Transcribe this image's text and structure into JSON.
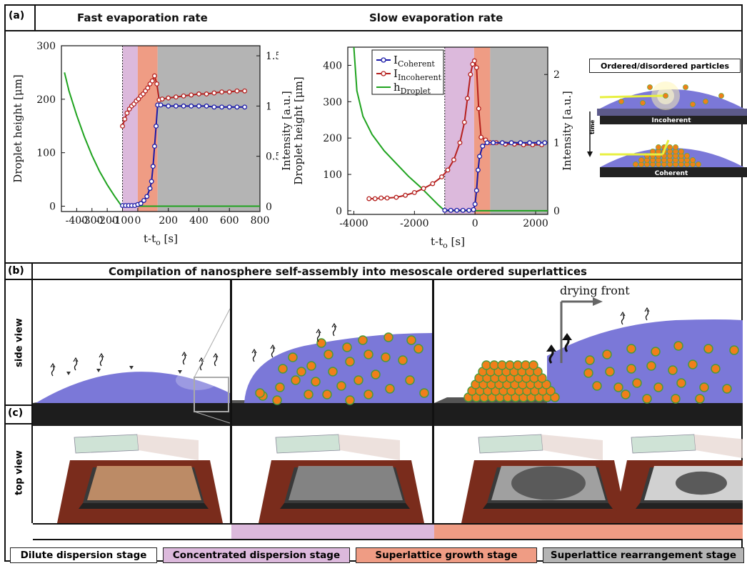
{
  "panels": {
    "a_tag": "(a)",
    "b_tag": "(b)",
    "c_tag": "(c)",
    "fast_title": "Fast evaporation rate",
    "slow_title": "Slow evaporation rate",
    "b_title": "Compilation of nanosphere self-assembly into mesoscale ordered superlattices",
    "side_view": "side view",
    "top_view": "top view",
    "drying_front": "drying front"
  },
  "inset": {
    "title": "Ordered/disordered particles",
    "incoherent": "Incoherent",
    "coherent": "Coherent",
    "time": "time"
  },
  "stages": [
    {
      "label": "Dilute dispersion stage",
      "color": "#ffffff"
    },
    {
      "label": "Concentrated dispersion stage",
      "color": "#dcb9dc"
    },
    {
      "label": "Superlattice growth stage",
      "color": "#ef9c84"
    },
    {
      "label": "Superlattice rearrangement stage",
      "color": "#b4b4b4"
    }
  ],
  "colors": {
    "coherent": "#1a1aa8",
    "incoherent": "#b5201e",
    "droplet": "#1fa31f",
    "concentrated": "#dcb9dc",
    "growth": "#ef9c84",
    "rearrangement": "#b4b4b4",
    "liquid": "#7b78d8",
    "particle": "#f07f1a"
  },
  "chart_data": [
    {
      "type": "line",
      "title": "Fast evaporation rate",
      "xlabel": "t-t",
      "xlabel_sub": "o",
      "xlabel_unit": "[s]",
      "ylabel_left": "Droplet height [μm]",
      "ylabel_right": "",
      "xlim": [
        -500,
        800
      ],
      "ylim_left": [
        -10,
        300
      ],
      "ylim_right": [
        -0.05,
        1.6
      ],
      "xticks": [
        -400,
        -300,
        -200,
        -100,
        0,
        200,
        400,
        600,
        800
      ],
      "xtick_labels": [
        "-400",
        "-300",
        "-200",
        "-100",
        "0",
        "200",
        "400",
        "600",
        "800"
      ],
      "yticks_left": [
        0,
        100,
        200,
        300
      ],
      "yticks_right": [
        0,
        0.5,
        1,
        1.5
      ],
      "ytick_labels_right": [
        "0",
        "0.5",
        "1",
        "1.5"
      ],
      "stage_regions": [
        {
          "stage": "concentrated",
          "x": [
            -100,
            0
          ]
        },
        {
          "stage": "growth",
          "x": [
            0,
            130
          ]
        },
        {
          "stage": "rearrangement",
          "x": [
            130,
            800
          ]
        }
      ],
      "series": [
        {
          "key": "droplet",
          "axis": "left",
          "marker": false,
          "x": [
            -480,
            -450,
            -400,
            -350,
            -300,
            -250,
            -200,
            -150,
            -110,
            -100,
            0,
            200,
            400,
            600,
            800
          ],
          "y": [
            250,
            215,
            170,
            130,
            95,
            65,
            40,
            18,
            2,
            0,
            0,
            0,
            0,
            0,
            0
          ]
        },
        {
          "key": "incoherent",
          "axis": "right",
          "marker": true,
          "x": [
            -100,
            -85,
            -70,
            -55,
            -40,
            -25,
            -10,
            5,
            20,
            35,
            50,
            65,
            80,
            95,
            110,
            125,
            140,
            160,
            200,
            250,
            300,
            350,
            400,
            450,
            500,
            550,
            600,
            650,
            700
          ],
          "y": [
            0.8,
            0.87,
            0.93,
            0.97,
            1.0,
            1.02,
            1.05,
            1.07,
            1.1,
            1.12,
            1.15,
            1.18,
            1.22,
            1.25,
            1.3,
            1.22,
            1.06,
            1.07,
            1.08,
            1.09,
            1.1,
            1.11,
            1.12,
            1.12,
            1.13,
            1.14,
            1.14,
            1.15,
            1.15
          ]
        },
        {
          "key": "coherent",
          "axis": "right",
          "marker": true,
          "x": [
            -100,
            -80,
            -60,
            -40,
            -20,
            0,
            20,
            40,
            60,
            80,
            90,
            100,
            110,
            120,
            130,
            150,
            200,
            250,
            300,
            350,
            400,
            450,
            500,
            550,
            600,
            650,
            700
          ],
          "y": [
            0.01,
            0.01,
            0.01,
            0.01,
            0.01,
            0.02,
            0.03,
            0.06,
            0.1,
            0.18,
            0.25,
            0.4,
            0.6,
            0.8,
            1.01,
            1.01,
            1.0,
            1.0,
            1.0,
            1.0,
            1.0,
            1.0,
            0.99,
            0.99,
            0.99,
            0.99,
            0.99
          ]
        }
      ]
    },
    {
      "type": "line",
      "title": "Slow evaporation rate",
      "xlabel": "t-t",
      "xlabel_sub": "o",
      "xlabel_unit": "[s]",
      "ylabel_left": "Droplet height [μm]",
      "ylabel_left2": "Intensity [a.u.]",
      "ylabel_right": "Intensity [a.u.]",
      "xlim": [
        -4200,
        2400
      ],
      "ylim_left": [
        -10,
        450
      ],
      "ylim_right": [
        -0.05,
        2.4
      ],
      "xticks": [
        -4000,
        -2000,
        0,
        2000
      ],
      "xtick_labels": [
        "-4000",
        "-2000",
        "0",
        "2000"
      ],
      "yticks_left": [
        0,
        100,
        200,
        300,
        400
      ],
      "yticks_right": [
        0,
        1,
        2
      ],
      "ytick_labels_right": [
        "0",
        "1",
        "2"
      ],
      "legend": [
        "I_Coherent",
        "I_Incoherent",
        "h_Droplet"
      ],
      "stage_regions": [
        {
          "stage": "concentrated",
          "x": [
            -1000,
            -30
          ]
        },
        {
          "stage": "growth",
          "x": [
            -30,
            500
          ]
        },
        {
          "stage": "rearrangement",
          "x": [
            500,
            2400
          ]
        }
      ],
      "series": [
        {
          "key": "droplet",
          "axis": "left",
          "marker": false,
          "x": [
            -4000,
            -3900,
            -3700,
            -3400,
            -3000,
            -2600,
            -2200,
            -1800,
            -1500,
            -1200,
            -1000,
            0,
            1000,
            2400
          ],
          "y": [
            450,
            330,
            260,
            210,
            165,
            130,
            95,
            65,
            40,
            15,
            0,
            0,
            0,
            0
          ]
        },
        {
          "key": "incoherent",
          "axis": "right",
          "marker": true,
          "x": [
            -3500,
            -3300,
            -3100,
            -2900,
            -2600,
            -2300,
            -2000,
            -1700,
            -1400,
            -1100,
            -900,
            -700,
            -500,
            -350,
            -250,
            -150,
            -80,
            -20,
            50,
            120,
            200,
            350,
            500,
            700,
            1000,
            1300,
            1600,
            1900,
            2200
          ],
          "y": [
            0.18,
            0.18,
            0.19,
            0.19,
            0.2,
            0.23,
            0.27,
            0.33,
            0.4,
            0.5,
            0.6,
            0.75,
            1.0,
            1.3,
            1.65,
            2.0,
            2.15,
            2.2,
            2.1,
            1.5,
            1.08,
            1.04,
            1.0,
            1.0,
            0.98,
            0.98,
            0.97,
            0.97,
            0.97
          ]
        },
        {
          "key": "coherent",
          "axis": "right",
          "marker": true,
          "x": [
            -1000,
            -800,
            -600,
            -400,
            -200,
            -50,
            0,
            50,
            100,
            150,
            250,
            400,
            600,
            900,
            1200,
            1500,
            1800,
            2100,
            2300
          ],
          "y": [
            0.01,
            0.01,
            0.01,
            0.01,
            0.01,
            0.02,
            0.1,
            0.3,
            0.6,
            0.8,
            0.95,
            1.0,
            1.0,
            1.0,
            1.0,
            1.0,
            1.0,
            1.0,
            1.0
          ]
        }
      ]
    }
  ]
}
